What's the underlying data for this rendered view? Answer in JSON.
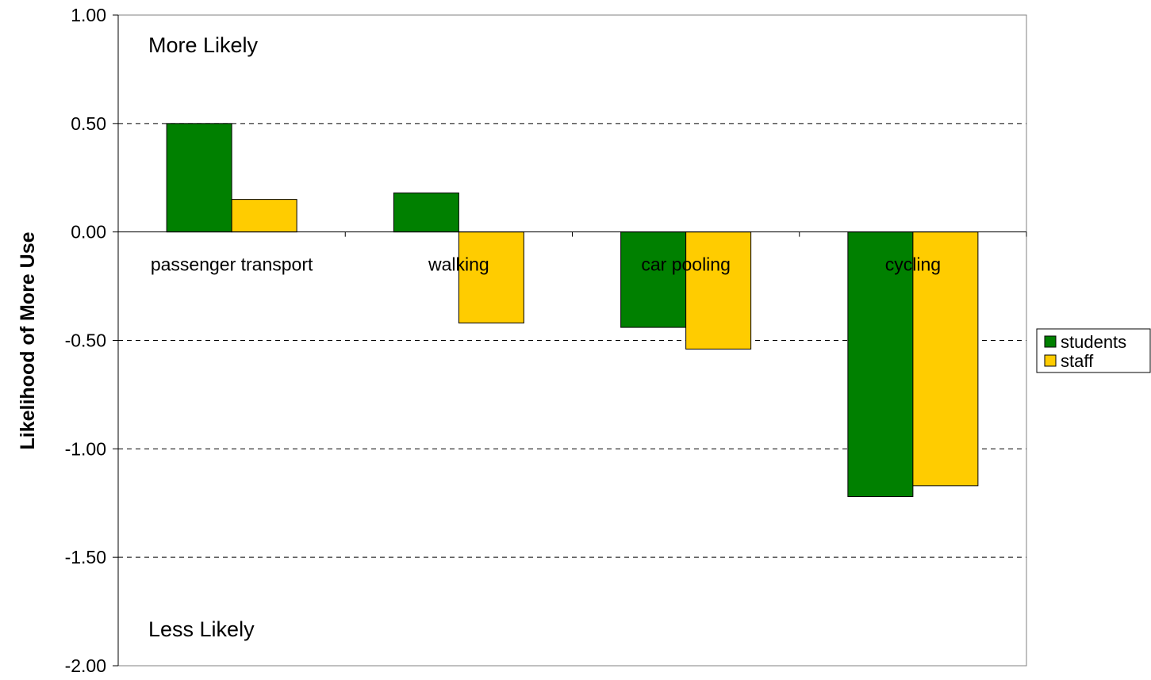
{
  "chart_data": {
    "type": "bar",
    "title": "",
    "xlabel": "",
    "ylabel": "Likelihood of More Use",
    "ylim": [
      -2.0,
      1.0
    ],
    "yticks": [
      1.0,
      0.5,
      0.0,
      -0.5,
      -1.0,
      -1.5,
      -2.0
    ],
    "ytick_labels": [
      "1.00",
      "0.50",
      "0.00",
      "-0.50",
      "-1.00",
      "-1.50",
      "-2.00"
    ],
    "grid": "horizontal dashed",
    "legend_position": "right",
    "categories": [
      "passenger transport",
      "walking",
      "car pooling",
      "cycling"
    ],
    "series": [
      {
        "name": "students",
        "color": "#008000",
        "values": [
          0.5,
          0.18,
          -0.44,
          -1.22
        ]
      },
      {
        "name": "staff",
        "color": "#FFCC00",
        "values": [
          0.15,
          -0.42,
          -0.54,
          -1.17
        ]
      }
    ],
    "annotations": {
      "top": "More Likely",
      "bottom": "Less Likely"
    }
  }
}
